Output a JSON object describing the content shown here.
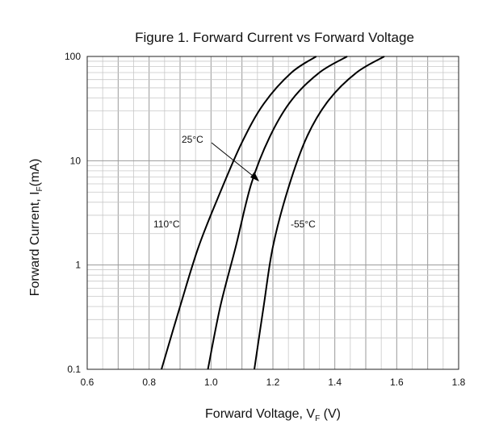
{
  "chart_data": {
    "type": "line",
    "title": "Figure 1. Forward Current vs Forward Voltage",
    "xlabel": {
      "main": "Forward Voltage, V",
      "sub": "F",
      "unit": "(V)"
    },
    "ylabel": {
      "main": "Forward Current, I",
      "sub": "F",
      "unit": "(mA)"
    },
    "xlim": [
      0.6,
      1.8
    ],
    "ylim": [
      0.1,
      100
    ],
    "yscale": "log",
    "grid": true,
    "x_ticks": [
      "0.6",
      "0.8",
      "1.0",
      "1.2",
      "1.4",
      "1.6",
      "1.8"
    ],
    "y_ticks": [
      "0.1",
      "1",
      "10",
      "100"
    ],
    "series": [
      {
        "name": "110°C",
        "points": [
          [
            0.84,
            0.1
          ],
          [
            0.9,
            0.4
          ],
          [
            0.96,
            1.5
          ],
          [
            1.03,
            5
          ],
          [
            1.1,
            15
          ],
          [
            1.17,
            35
          ],
          [
            1.26,
            70
          ],
          [
            1.34,
            100
          ]
        ]
      },
      {
        "name": "25°C",
        "points": [
          [
            0.99,
            0.1
          ],
          [
            1.03,
            0.4
          ],
          [
            1.08,
            1.5
          ],
          [
            1.13,
            6
          ],
          [
            1.19,
            17
          ],
          [
            1.26,
            38
          ],
          [
            1.35,
            70
          ],
          [
            1.44,
            100
          ]
        ]
      },
      {
        "name": "-55°C",
        "points": [
          [
            1.14,
            0.1
          ],
          [
            1.17,
            0.4
          ],
          [
            1.2,
            1.5
          ],
          [
            1.25,
            5.5
          ],
          [
            1.31,
            17
          ],
          [
            1.38,
            38
          ],
          [
            1.47,
            70
          ],
          [
            1.56,
            100
          ]
        ]
      }
    ],
    "annotations": [
      {
        "text": "110°C",
        "series": 0
      },
      {
        "text": "25°C",
        "series": 1,
        "arrow": true
      },
      {
        "text": "-55°C",
        "series": 2
      }
    ]
  }
}
